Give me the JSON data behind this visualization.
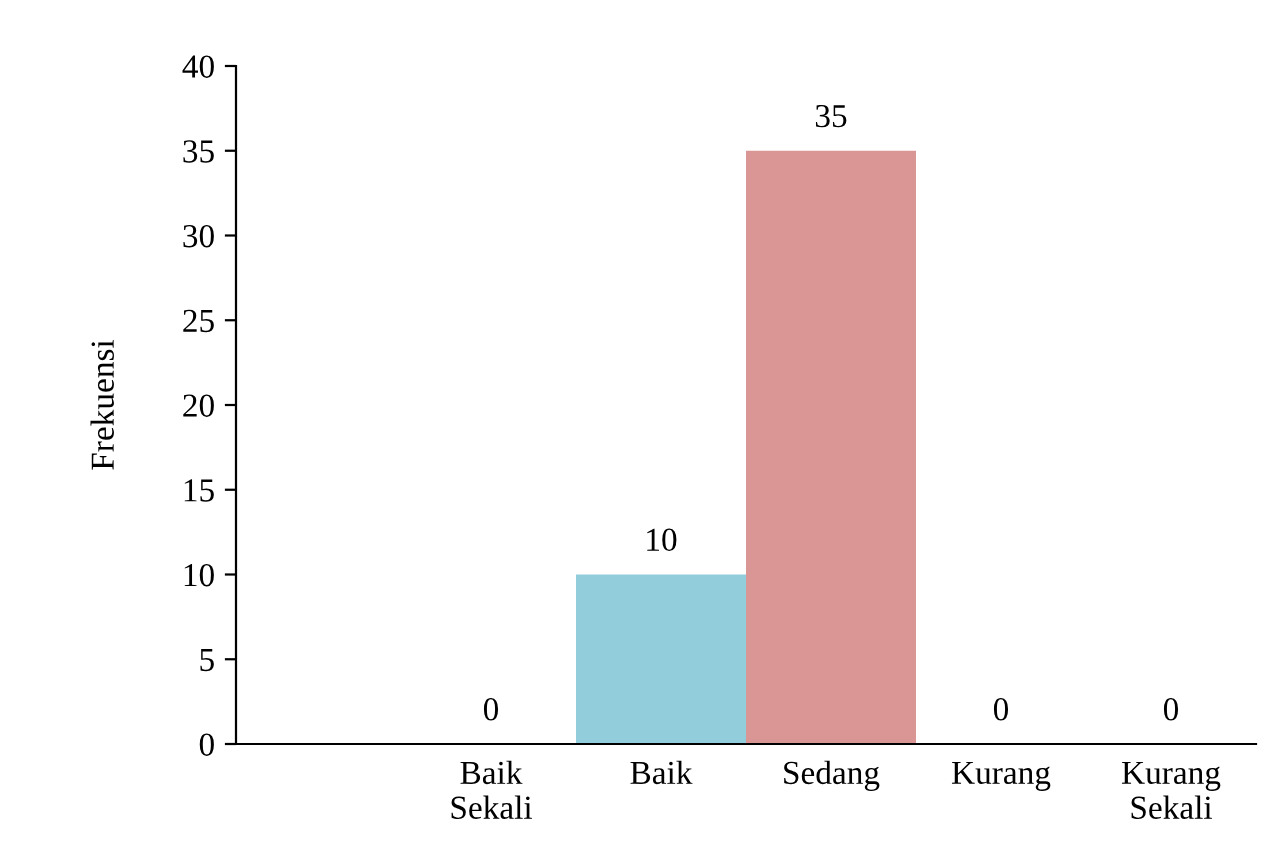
{
  "chart_data": {
    "type": "bar",
    "ylabel": "Frekuensi",
    "categories": [
      null,
      "Baik\nSekali",
      "Baik",
      "Sedang",
      "Kurang",
      "Kurang\nSekali"
    ],
    "values": [
      null,
      0,
      10,
      35,
      0,
      0
    ],
    "colors": [
      "#92cddc",
      "#92cddc",
      "#92cddc",
      "#d99694",
      "#d99694",
      "#d99694"
    ],
    "ylim": [
      0,
      40
    ],
    "yticks": [
      0,
      5,
      10,
      15,
      20,
      25,
      30,
      35,
      40
    ],
    "data_labels": true,
    "grid": false,
    "legend": false
  }
}
